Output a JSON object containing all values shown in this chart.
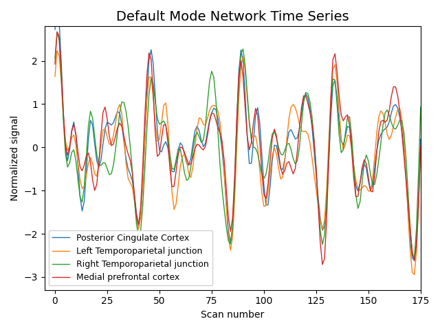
{
  "title": "Default Mode Network Time Series",
  "xlabel": "Scan number",
  "ylabel": "Normalized signal",
  "xlim": [
    -5,
    175
  ],
  "ylim": [
    -3.3,
    2.8
  ],
  "xticks": [
    0,
    25,
    50,
    75,
    100,
    125,
    150,
    175
  ],
  "legend_labels": [
    "Posterior Cingulate Cortex",
    "Left Temporoparietal junction",
    "Right Temporoparietal junction",
    "Medial prefrontal cortex"
  ],
  "colors": [
    "#1f77b4",
    "#ff7f0e",
    "#2ca02c",
    "#d62728"
  ],
  "n_scans": 176,
  "title_fontsize": 14,
  "legend_loc": "lower left",
  "figsize": [
    6.4,
    4.8
  ],
  "dpi": 100
}
